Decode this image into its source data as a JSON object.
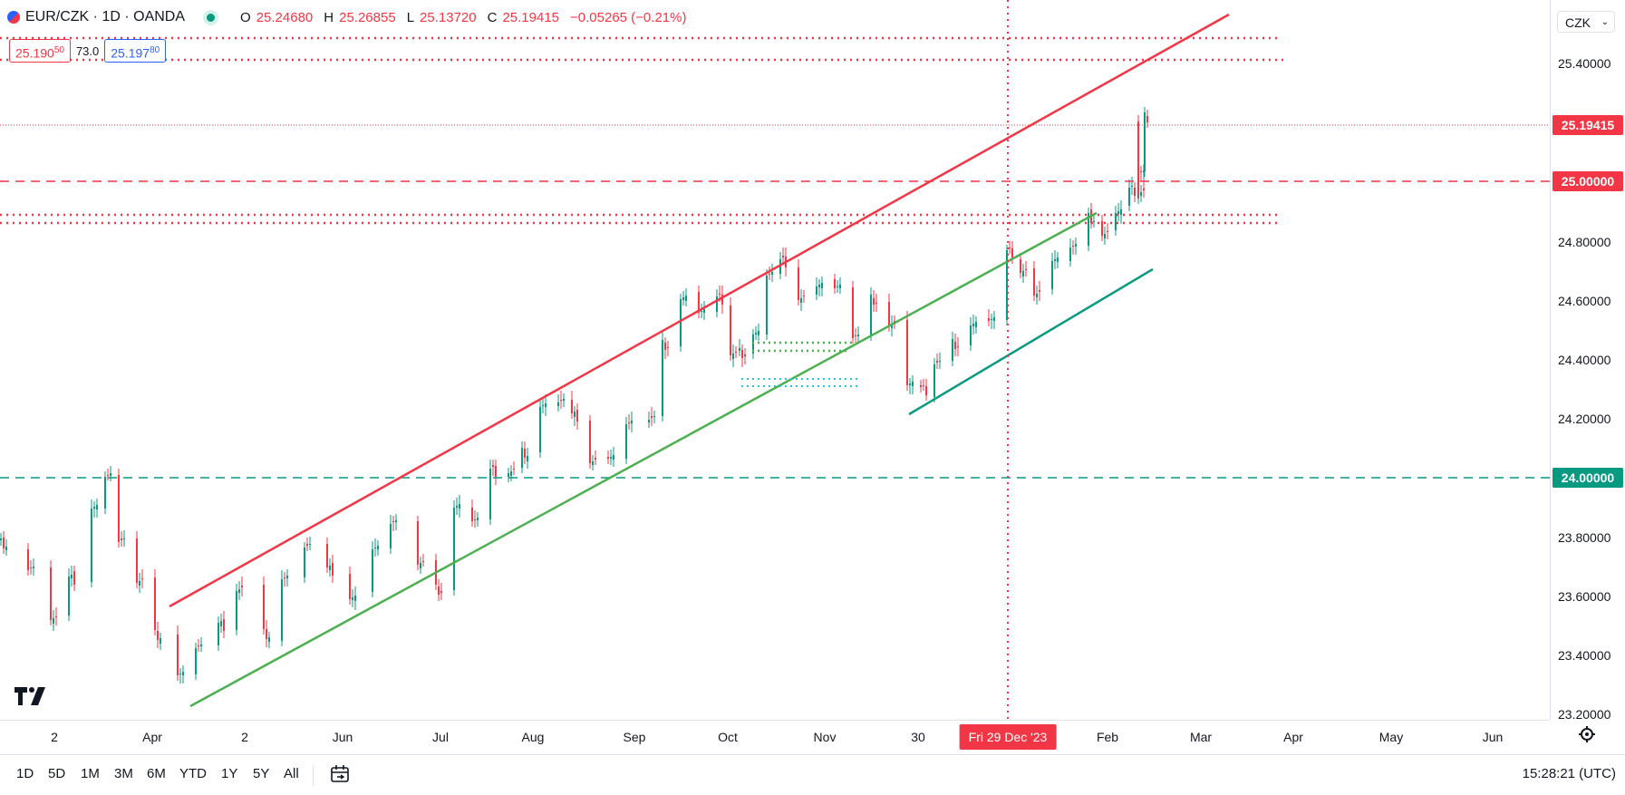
{
  "header": {
    "symbol": "EUR/CZK · 1D · OANDA",
    "ohlc": {
      "o_label": "O",
      "o_value": "25.24680",
      "h_label": "H",
      "h_value": "25.26855",
      "l_label": "L",
      "l_value": "25.13720",
      "c_label": "C",
      "c_value": "25.19415",
      "change": "−0.05265 (−0.21%)"
    }
  },
  "order": {
    "sell_main": "25.190",
    "sell_sup": "50",
    "spread": "73.0",
    "buy_main": "25.197",
    "buy_sup": "80"
  },
  "price_axis": {
    "currency": "CZK",
    "ticks": [
      "25.40000",
      "25.20000",
      "25.00000",
      "24.80000",
      "24.60000",
      "24.40000",
      "24.20000",
      "24.00000",
      "23.80000",
      "23.60000",
      "23.40000",
      "23.20000"
    ],
    "last_price_label": "25.19415",
    "level_label_upper": "25.00000",
    "level_label_lower": "24.00000"
  },
  "time_axis": {
    "ticks": [
      "2",
      "Apr",
      "2",
      "Jun",
      "Jul",
      "Aug",
      "Sep",
      "Oct",
      "Nov",
      "30",
      "Feb",
      "Mar",
      "Apr",
      "May",
      "Jun"
    ],
    "crosshair_label": "Fri 29 Dec '23"
  },
  "toolbar": {
    "timeframes": [
      "1D",
      "5D",
      "1M",
      "3M",
      "6M",
      "YTD",
      "1Y",
      "5Y",
      "All"
    ],
    "clock": "15:28:21 (UTC)"
  },
  "colors": {
    "up": "#089981",
    "down": "#f23645",
    "channel_green": "#4caf50",
    "teal_line": "#089981",
    "red_line": "#f23645",
    "blue": "#2962ff"
  },
  "icons": [
    "symbol-icon",
    "live-status-icon",
    "tradingview-logo-icon",
    "gear-icon",
    "calendar-range-icon",
    "chevron-down-icon"
  ]
}
